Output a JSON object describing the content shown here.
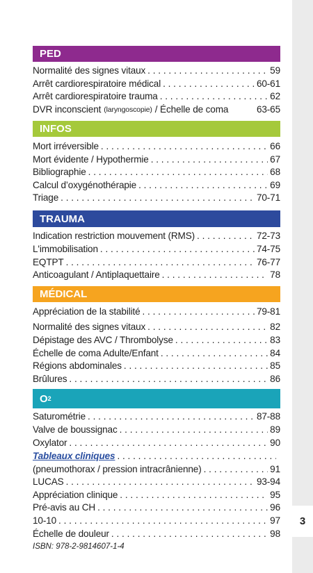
{
  "sections": [
    {
      "title": "PED",
      "color": "#8e2a8e",
      "entries": [
        {
          "text": "Normalité des signes vitaux",
          "page": "59"
        },
        {
          "text": "Arrêt cardiorespiratoire médical",
          "page": "60-61"
        },
        {
          "text": "Arrêt cardiorespiratoire trauma",
          "page": "62"
        },
        {
          "text": "DVR inconscient",
          "note": "(laryngoscopie)",
          "text2": "/ Échelle de coma",
          "page": "63-65"
        }
      ]
    },
    {
      "title": "INFOS",
      "color": "#a5c93b",
      "entries": [
        {
          "text": "Mort irréversible",
          "page": "66"
        },
        {
          "text": "Mort évidente / Hypothermie",
          "page": "67"
        },
        {
          "text": "Bibliographie",
          "page": "68"
        },
        {
          "text": "Calcul d’oxygénothérapie",
          "page": "69"
        },
        {
          "text": "Triage",
          "page": "70-71"
        }
      ]
    },
    {
      "title": "TRAUMA",
      "color": "#2d4a9d",
      "entries": [
        {
          "text": "Indication restriction mouvement (RMS)",
          "page": "72-73"
        },
        {
          "text": "L'immobilisation",
          "page": "74-75"
        },
        {
          "text": "EQTPT",
          "page": "76-77"
        },
        {
          "text": "Anticoagulant / Antiplaquettaire",
          "page": "78"
        }
      ]
    },
    {
      "title": "MÉDICAL",
      "color": "#f6a41f",
      "entries": [
        {
          "text": "Appréciation de la stabilité",
          "page": "79-81"
        },
        {
          "text": "Normalité des signes vitaux",
          "page": "82"
        },
        {
          "text": "Dépistage des AVC / Thrombolyse",
          "page": "83"
        },
        {
          "text": "Échelle de coma Adulte/Enfant",
          "page": "84"
        },
        {
          "text": "Régions abdominales",
          "page": "85"
        },
        {
          "text": "Brûlures",
          "page": "86"
        }
      ]
    },
    {
      "title": "O",
      "subscript": "2",
      "color": "#1aa4b9",
      "entries": [
        {
          "text": "Saturométrie",
          "page": "87-88"
        },
        {
          "text": "Valve de boussignac",
          "page": "89"
        },
        {
          "text": "Oxylator",
          "page": "90"
        },
        {
          "link": "Tableaux cliniques"
        },
        {
          "text": "(pneumothorax / pression intracrânienne)",
          "page": "91"
        },
        {
          "text": "LUCAS",
          "page": "93-94"
        },
        {
          "text": "Appréciation clinique",
          "page": "95"
        },
        {
          "text": "Pré-avis au CH",
          "page": "96"
        },
        {
          "text": "10-10",
          "page": "97"
        },
        {
          "text": "Échelle de douleur",
          "page": "98"
        }
      ]
    }
  ],
  "isbn": "ISBN: 978-2-9814607-1-4",
  "page_number": "3"
}
